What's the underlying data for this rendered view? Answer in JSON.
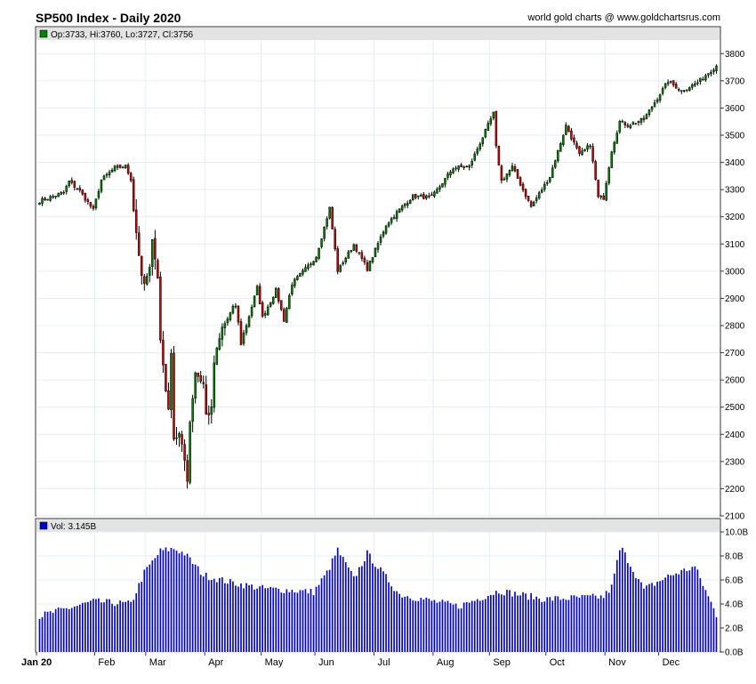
{
  "header": {
    "title": "SP500 Index - Daily 2020",
    "credit": "world gold charts @ www.goldchartsrus.com"
  },
  "price_panel": {
    "legend": "Op:3733, Hi:3760, Lo:3727, Cl:3756",
    "legend_color": "#008000"
  },
  "volume_panel": {
    "legend": "Vol: 3.145B",
    "legend_color": "#0000cc"
  },
  "colors": {
    "up": "#008000",
    "down": "#cc0000",
    "volume": "#0000cc",
    "grid": "#e6ecf2",
    "legend_band": "#e3e3e3"
  },
  "chart_data": [
    {
      "type": "candlestick",
      "title": "SP500 Index - Daily 2020",
      "ylim": [
        2100,
        3850
      ],
      "y_ticks": [
        "2100",
        "2200",
        "2300",
        "2400",
        "2500",
        "2600",
        "2700",
        "2800",
        "2900",
        "3000",
        "3100",
        "3200",
        "3300",
        "3400",
        "3500",
        "3600",
        "3700",
        "3800"
      ],
      "x_ticks": [
        "Jan 20",
        "Feb",
        "Mar",
        "Apr",
        "May",
        "Jun",
        "Jul",
        "Aug",
        "Sep",
        "Oct",
        "Nov",
        "Dec"
      ],
      "grid": true,
      "anchor_closes": [
        [
          "2020-01-02",
          3258
        ],
        [
          "2020-01-15",
          3289
        ],
        [
          "2020-01-17",
          3330
        ],
        [
          "2020-01-24",
          3295
        ],
        [
          "2020-01-31",
          3225
        ],
        [
          "2020-02-05",
          3335
        ],
        [
          "2020-02-12",
          3380
        ],
        [
          "2020-02-19",
          3386
        ],
        [
          "2020-02-21",
          3338
        ],
        [
          "2020-02-24",
          3225
        ],
        [
          "2020-02-27",
          2978
        ],
        [
          "2020-02-28",
          2954
        ],
        [
          "2020-03-03",
          3003
        ],
        [
          "2020-03-04",
          3130
        ],
        [
          "2020-03-06",
          2972
        ],
        [
          "2020-03-09",
          2746
        ],
        [
          "2020-03-12",
          2480
        ],
        [
          "2020-03-13",
          2711
        ],
        [
          "2020-03-16",
          2386
        ],
        [
          "2020-03-18",
          2398
        ],
        [
          "2020-03-20",
          2304
        ],
        [
          "2020-03-23",
          2237
        ],
        [
          "2020-03-24",
          2447
        ],
        [
          "2020-03-26",
          2630
        ],
        [
          "2020-03-31",
          2585
        ],
        [
          "2020-04-01",
          2470
        ],
        [
          "2020-04-03",
          2489
        ],
        [
          "2020-04-06",
          2664
        ],
        [
          "2020-04-09",
          2790
        ],
        [
          "2020-04-17",
          2875
        ],
        [
          "2020-04-21",
          2737
        ],
        [
          "2020-04-29",
          2939
        ],
        [
          "2020-05-01",
          2830
        ],
        [
          "2020-05-08",
          2930
        ],
        [
          "2020-05-13",
          2820
        ],
        [
          "2020-05-18",
          2954
        ],
        [
          "2020-05-28",
          3030
        ],
        [
          "2020-06-01",
          3055
        ],
        [
          "2020-06-08",
          3232
        ],
        [
          "2020-06-11",
          3002
        ],
        [
          "2020-06-19",
          3098
        ],
        [
          "2020-06-26",
          3009
        ],
        [
          "2020-07-08",
          3170
        ],
        [
          "2020-07-15",
          3227
        ],
        [
          "2020-07-22",
          3276
        ],
        [
          "2020-07-31",
          3271
        ],
        [
          "2020-08-12",
          3380
        ],
        [
          "2020-08-20",
          3385
        ],
        [
          "2020-09-02",
          3580
        ],
        [
          "2020-09-03",
          3455
        ],
        [
          "2020-09-08",
          3332
        ],
        [
          "2020-09-14",
          3383
        ],
        [
          "2020-09-23",
          3237
        ],
        [
          "2020-10-02",
          3348
        ],
        [
          "2020-10-12",
          3535
        ],
        [
          "2020-10-19",
          3427
        ],
        [
          "2020-10-23",
          3465
        ],
        [
          "2020-10-28",
          3271
        ],
        [
          "2020-10-30",
          3270
        ],
        [
          "2020-11-04",
          3444
        ],
        [
          "2020-11-09",
          3550
        ],
        [
          "2020-11-12",
          3537
        ],
        [
          "2020-11-20",
          3558
        ],
        [
          "2020-12-04",
          3699
        ],
        [
          "2020-12-11",
          3663
        ],
        [
          "2020-12-21",
          3694
        ],
        [
          "2020-12-31",
          3756
        ]
      ]
    },
    {
      "type": "bar",
      "series_name": "Vol",
      "unit": "B",
      "ylim": [
        0,
        10
      ],
      "y_ticks": [
        "0.0B",
        "2.0B",
        "4.0B",
        "6.0B",
        "8.0B",
        "10.0B"
      ],
      "anchor_volumes": [
        [
          "2020-01-02",
          3.0
        ],
        [
          "2020-01-31",
          4.2
        ],
        [
          "2020-02-21",
          4.0
        ],
        [
          "2020-02-28",
          6.6
        ],
        [
          "2020-03-09",
          8.4
        ],
        [
          "2020-03-16",
          8.6
        ],
        [
          "2020-03-20",
          8.2
        ],
        [
          "2020-03-31",
          6.4
        ],
        [
          "2020-04-15",
          5.8
        ],
        [
          "2020-05-01",
          5.3
        ],
        [
          "2020-05-29",
          5.0
        ],
        [
          "2020-06-05",
          6.6
        ],
        [
          "2020-06-11",
          8.5
        ],
        [
          "2020-06-19",
          6.1
        ],
        [
          "2020-06-26",
          8.2
        ],
        [
          "2020-07-15",
          4.8
        ],
        [
          "2020-08-14",
          3.8
        ],
        [
          "2020-09-04",
          5.1
        ],
        [
          "2020-09-30",
          4.4
        ],
        [
          "2020-10-30",
          4.6
        ],
        [
          "2020-11-04",
          5.4
        ],
        [
          "2020-11-09",
          8.5
        ],
        [
          "2020-11-10",
          8.5
        ],
        [
          "2020-11-20",
          5.2
        ],
        [
          "2020-12-04",
          6.3
        ],
        [
          "2020-12-18",
          7.1
        ],
        [
          "2020-12-31",
          3.1
        ]
      ]
    }
  ]
}
